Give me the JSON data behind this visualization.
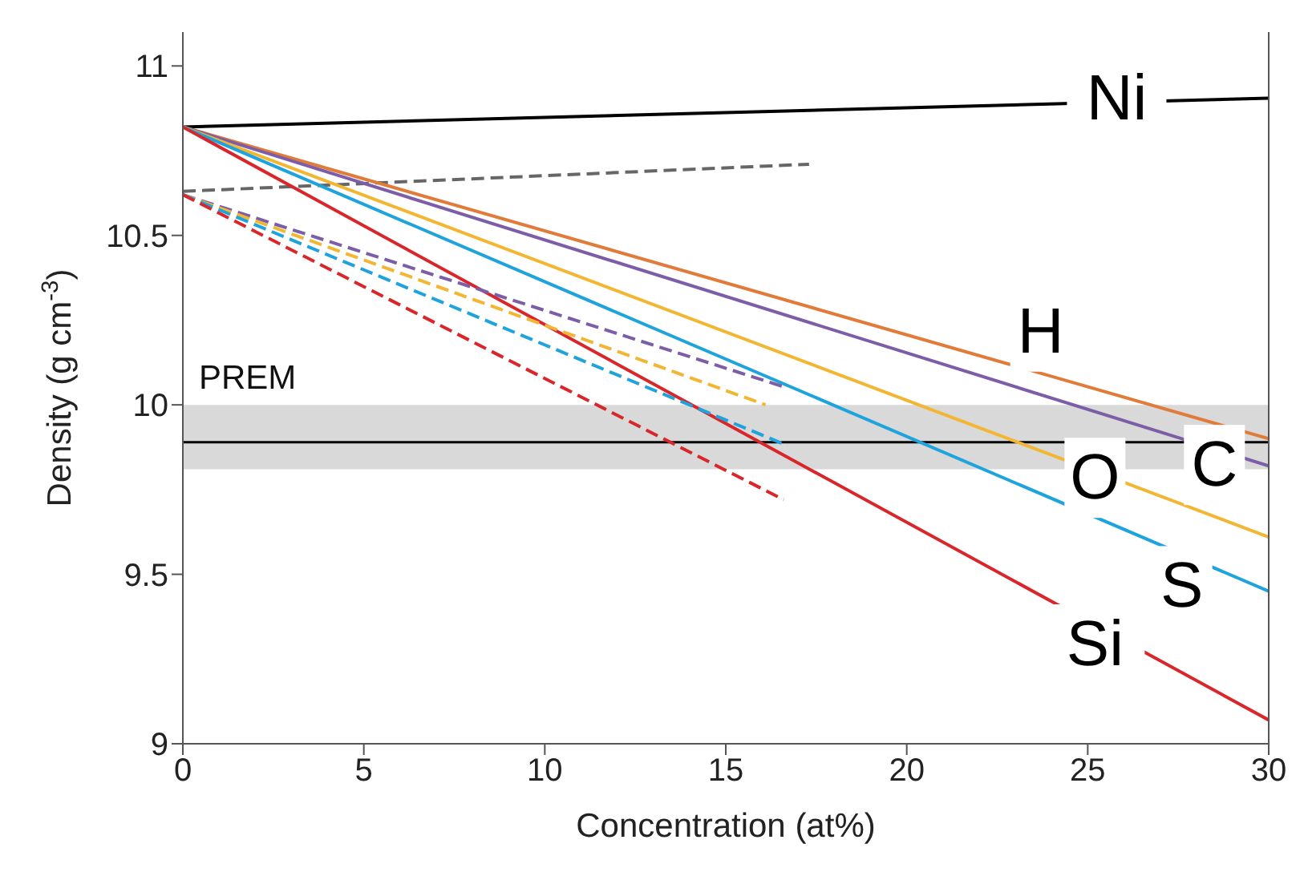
{
  "chart_data": {
    "type": "line",
    "xlabel": "Concentration (at%)",
    "ylabel": "Density (g cm$^{-3}$)",
    "xlim": [
      0,
      30
    ],
    "xticks": [
      0,
      5,
      10,
      15,
      20,
      25,
      30
    ],
    "ylim": [
      9,
      11.1
    ],
    "yticks": [
      9,
      9.5,
      10,
      10.5,
      11
    ],
    "grid": false,
    "legend": false,
    "marker": "none",
    "series": [
      {
        "name": "Ni",
        "color": "#000000",
        "line_style": "solid",
        "x": [
          0,
          30
        ],
        "values": [
          10.82,
          10.905
        ]
      },
      {
        "color": "#666666",
        "line_style": "dashed",
        "x": [
          0,
          17.3
        ],
        "values": [
          10.63,
          10.71
        ]
      },
      {
        "name": "H",
        "color": "#e07b39",
        "line_style": "solid",
        "x": [
          0,
          30
        ],
        "values": [
          10.82,
          9.9
        ]
      },
      {
        "name": "C",
        "color": "#7b5ea7",
        "line_style": "solid",
        "x": [
          0,
          30
        ],
        "values": [
          10.82,
          9.82
        ]
      },
      {
        "name": "O",
        "color": "#f2b632",
        "line_style": "solid",
        "x": [
          0,
          30
        ],
        "values": [
          10.82,
          9.61
        ]
      },
      {
        "name": "S",
        "color": "#1fa3dc",
        "line_style": "solid",
        "x": [
          0,
          30
        ],
        "values": [
          10.82,
          9.45
        ]
      },
      {
        "name": "Si",
        "color": "#d9262b",
        "line_style": "solid",
        "x": [
          0,
          30
        ],
        "values": [
          10.82,
          9.07
        ]
      },
      {
        "color": "#7b5ea7",
        "line_style": "dashed",
        "x": [
          0,
          16.7
        ],
        "values": [
          10.62,
          10.05
        ]
      },
      {
        "color": "#f2b632",
        "line_style": "dashed",
        "x": [
          0,
          16.1
        ],
        "values": [
          10.62,
          10.0
        ]
      },
      {
        "color": "#1fa3dc",
        "line_style": "dashed",
        "x": [
          0,
          16.7
        ],
        "values": [
          10.62,
          9.88
        ]
      },
      {
        "color": "#d9262b",
        "line_style": "dashed",
        "x": [
          0,
          16.6
        ],
        "values": [
          10.62,
          9.72
        ]
      }
    ],
    "bands": [
      {
        "axis": "y",
        "from": 9.81,
        "to": 10.0,
        "label": "PREM",
        "color": "#d9d9d9"
      }
    ],
    "ref_lines": [
      {
        "axis": "y",
        "value": 9.89,
        "color": "#000000"
      }
    ]
  }
}
